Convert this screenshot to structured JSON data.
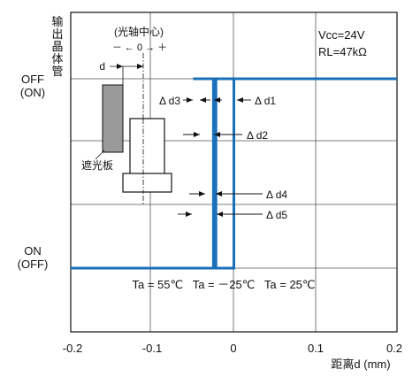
{
  "chart_data": {
    "type": "line",
    "xlabel": "距离d (mm)",
    "ylabel": "输出晶体管",
    "xlim": [
      -0.2,
      0.2
    ],
    "x_ticks": [
      "-0.2",
      "-0.1",
      "0",
      "0.1",
      "0.2"
    ],
    "y_states": {
      "off_label": "OFF",
      "off_sub": "(ON)",
      "on_label": "ON",
      "on_sub": "(OFF)"
    },
    "grid": true,
    "series": [
      {
        "name": "Ta = 55℃",
        "x": [
          -0.2,
          -0.025,
          -0.025,
          -0.05,
          -0.05,
          0.2
        ],
        "levels": [
          0,
          0,
          1,
          1,
          1,
          1
        ]
      },
      {
        "name": "Ta = －25℃",
        "x": [
          -0.2,
          -0.022,
          -0.022,
          -0.038,
          -0.038,
          0.2
        ],
        "levels": [
          0,
          0,
          1,
          1,
          1,
          1
        ]
      },
      {
        "name": "Ta = 25℃",
        "x": [
          -0.2,
          0.0,
          0.0,
          -0.025,
          -0.025,
          0.2
        ],
        "levels": [
          0,
          0,
          1,
          1,
          1,
          1
        ]
      }
    ],
    "series_label": "Ta = 55℃   Ta = －25℃   Ta = 25℃",
    "annotations": {
      "conditions_1": "Vcc=24V",
      "conditions_2": "RL=47kΩ",
      "optical_axis": "(光轴中心)",
      "axis_marks": "－ ←  0  → ＋",
      "d_label": "d",
      "shield_label": "遮光板",
      "d1": "Δ d1",
      "d2": "Δ d2",
      "d3": "Δ d3",
      "d4": "Δ d4",
      "d5": "Δ d5"
    },
    "colors": {
      "series": "#1a6fba",
      "shield": "#9a9a9a",
      "grid": "#333333"
    }
  }
}
